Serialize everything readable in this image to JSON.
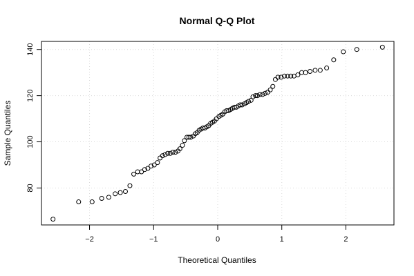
{
  "chart_data": {
    "type": "scatter",
    "title": "Normal Q-Q Plot",
    "xlabel": "Theoretical Quantiles",
    "ylabel": "Sample Quantiles",
    "xlim": [
      -2.75,
      2.75
    ],
    "ylim": [
      64.0,
      143.5
    ],
    "x_ticks": [
      -2,
      -1,
      0,
      1,
      2
    ],
    "x_tick_labels": [
      "−2",
      "−1",
      "0",
      "1",
      "2"
    ],
    "y_ticks": [
      80,
      100,
      120,
      140
    ],
    "y_tick_labels": [
      "80",
      "100",
      "120",
      "140"
    ],
    "grid": true,
    "marker": "open-circle",
    "point_color": "#000000",
    "grid_color": "#d9d9d9",
    "points": [
      [
        -2.57,
        66.5
      ],
      [
        -2.17,
        74.0
      ],
      [
        -1.96,
        74.0
      ],
      [
        -1.81,
        75.5
      ],
      [
        -1.7,
        76.0
      ],
      [
        -1.6,
        77.5
      ],
      [
        -1.52,
        78.0
      ],
      [
        -1.44,
        78.5
      ],
      [
        -1.37,
        81.0
      ],
      [
        -1.31,
        86.0
      ],
      [
        -1.25,
        87.0
      ],
      [
        -1.19,
        87.0
      ],
      [
        -1.14,
        88.0
      ],
      [
        -1.09,
        88.5
      ],
      [
        -1.04,
        89.5
      ],
      [
        -0.99,
        90.0
      ],
      [
        -0.94,
        91.0
      ],
      [
        -0.9,
        93.0
      ],
      [
        -0.86,
        94.0
      ],
      [
        -0.82,
        94.5
      ],
      [
        -0.78,
        95.0
      ],
      [
        -0.74,
        95.0
      ],
      [
        -0.7,
        95.5
      ],
      [
        -0.66,
        95.5
      ],
      [
        -0.62,
        96.0
      ],
      [
        -0.59,
        97.0
      ],
      [
        -0.55,
        98.5
      ],
      [
        -0.52,
        100.5
      ],
      [
        -0.48,
        102.0
      ],
      [
        -0.45,
        102.0
      ],
      [
        -0.42,
        102.0
      ],
      [
        -0.38,
        102.5
      ],
      [
        -0.35,
        103.5
      ],
      [
        -0.32,
        104.0
      ],
      [
        -0.29,
        105.0
      ],
      [
        -0.26,
        105.5
      ],
      [
        -0.23,
        106.0
      ],
      [
        -0.2,
        106.0
      ],
      [
        -0.17,
        106.5
      ],
      [
        -0.14,
        107.0
      ],
      [
        -0.11,
        108.0
      ],
      [
        -0.08,
        108.5
      ],
      [
        -0.05,
        109.0
      ],
      [
        -0.02,
        110.0
      ],
      [
        0.02,
        111.0
      ],
      [
        0.05,
        111.5
      ],
      [
        0.08,
        112.0
      ],
      [
        0.11,
        113.0
      ],
      [
        0.14,
        113.5
      ],
      [
        0.17,
        113.5
      ],
      [
        0.2,
        114.0
      ],
      [
        0.23,
        114.5
      ],
      [
        0.26,
        115.0
      ],
      [
        0.29,
        115.0
      ],
      [
        0.32,
        115.5
      ],
      [
        0.35,
        116.0
      ],
      [
        0.38,
        116.0
      ],
      [
        0.42,
        116.5
      ],
      [
        0.45,
        117.0
      ],
      [
        0.48,
        117.5
      ],
      [
        0.52,
        118.0
      ],
      [
        0.55,
        119.5
      ],
      [
        0.59,
        120.0
      ],
      [
        0.62,
        120.0
      ],
      [
        0.66,
        120.5
      ],
      [
        0.7,
        120.5
      ],
      [
        0.74,
        121.0
      ],
      [
        0.78,
        121.5
      ],
      [
        0.82,
        122.5
      ],
      [
        0.86,
        124.0
      ],
      [
        0.9,
        127.0
      ],
      [
        0.94,
        128.0
      ],
      [
        0.99,
        128.0
      ],
      [
        1.04,
        128.5
      ],
      [
        1.09,
        128.5
      ],
      [
        1.14,
        128.5
      ],
      [
        1.19,
        128.5
      ],
      [
        1.25,
        129.0
      ],
      [
        1.31,
        130.0
      ],
      [
        1.37,
        130.0
      ],
      [
        1.44,
        130.5
      ],
      [
        1.52,
        131.0
      ],
      [
        1.6,
        131.0
      ],
      [
        1.7,
        132.0
      ],
      [
        1.81,
        135.5
      ],
      [
        1.96,
        139.0
      ],
      [
        2.17,
        140.0
      ],
      [
        2.57,
        141.0
      ]
    ]
  }
}
